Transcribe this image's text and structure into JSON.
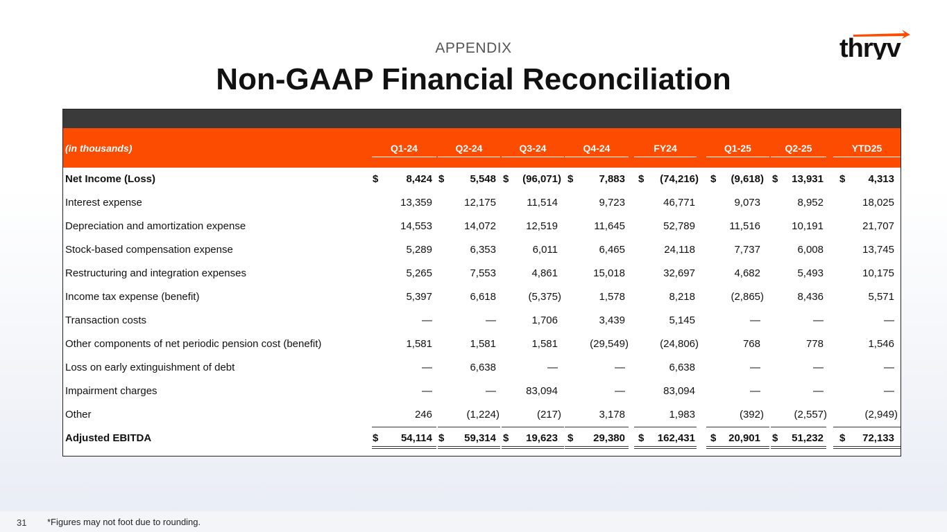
{
  "header": {
    "section": "APPENDIX",
    "title": "Non-GAAP Financial Reconciliation",
    "logo_text": "thryv"
  },
  "table": {
    "unit_label": "(in thousands)",
    "columns": [
      "Q1-24",
      "Q2-24",
      "Q3-24",
      "Q4-24",
      "FY24",
      "Q1-25",
      "Q2-25",
      "YTD25"
    ],
    "rows": [
      {
        "label": "Net Income (Loss)",
        "bold": true,
        "dollar": true,
        "values": [
          "8,424",
          "5,548",
          "(96,071)",
          "7,883",
          "(74,216)",
          "(9,618)",
          "13,931",
          "4,313"
        ]
      },
      {
        "label": "Interest expense",
        "values": [
          "13,359",
          "12,175",
          "11,514",
          "9,723",
          "46,771",
          "9,073",
          "8,952",
          "18,025"
        ]
      },
      {
        "label": "Depreciation and amortization  expense",
        "values": [
          "14,553",
          "14,072",
          "12,519",
          "11,645",
          "52,789",
          "11,516",
          "10,191",
          "21,707"
        ]
      },
      {
        "label": "Stock-based compensation expense",
        "values": [
          "5,289",
          "6,353",
          "6,011",
          "6,465",
          "24,118",
          "7,737",
          "6,008",
          "13,745"
        ]
      },
      {
        "label": "Restructuring and integration expenses",
        "values": [
          "5,265",
          "7,553",
          "4,861",
          "15,018",
          "32,697",
          "4,682",
          "5,493",
          "10,175"
        ]
      },
      {
        "label": "Income tax expense (benefit)",
        "values": [
          "5,397",
          "6,618",
          "(5,375)",
          "1,578",
          "8,218",
          "(2,865)",
          "8,436",
          "5,571"
        ]
      },
      {
        "label": "Transaction costs",
        "values": [
          "—",
          "—",
          "1,706",
          "3,439",
          "5,145",
          "—",
          "—",
          "—"
        ]
      },
      {
        "label": "Other components of net periodic pension cost (benefit)",
        "values": [
          "1,581",
          "1,581",
          "1,581",
          "(29,549)",
          "(24,806)",
          "768",
          "778",
          "1,546"
        ]
      },
      {
        "label": "Loss on early extinguishment of debt",
        "values": [
          "—",
          "6,638",
          "—",
          "—",
          "6,638",
          "—",
          "—",
          "—"
        ]
      },
      {
        "label": "Impairment charges",
        "values": [
          "—",
          "—",
          "83,094",
          "—",
          "83,094",
          "—",
          "—",
          "—"
        ]
      },
      {
        "label": "Other",
        "values": [
          "246",
          "(1,224)",
          "(217)",
          "3,178",
          "1,983",
          "(392)",
          "(2,557)",
          "(2,949)"
        ]
      },
      {
        "label": "Adjusted EBITDA",
        "bold": true,
        "dollar": true,
        "values": [
          "54,114",
          "59,314",
          "19,623",
          "29,380",
          "162,431",
          "20,901",
          "51,232",
          "72,133"
        ]
      }
    ],
    "currency_symbol": "$"
  },
  "footer": {
    "page_number": "31",
    "note": "*Figures may not foot due to rounding."
  },
  "colors": {
    "accent": "#fc4c02",
    "band": "#3a3a3a"
  }
}
